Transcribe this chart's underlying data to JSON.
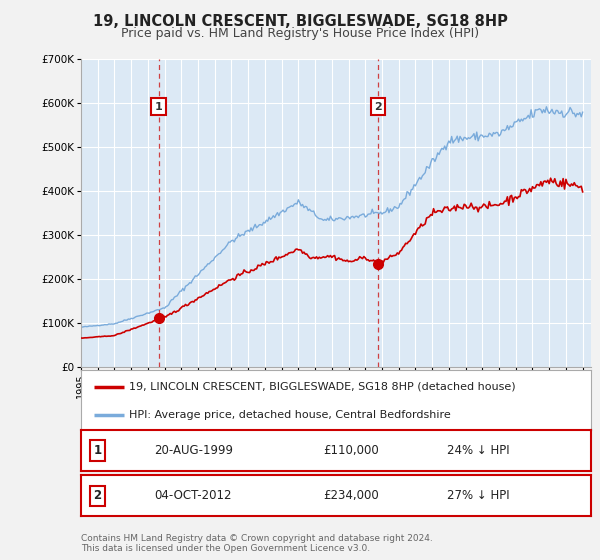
{
  "title": "19, LINCOLN CRESCENT, BIGGLESWADE, SG18 8HP",
  "subtitle": "Price paid vs. HM Land Registry's House Price Index (HPI)",
  "ylim": [
    0,
    700000
  ],
  "yticks": [
    0,
    100000,
    200000,
    300000,
    400000,
    500000,
    600000,
    700000
  ],
  "ytick_labels": [
    "£0",
    "£100K",
    "£200K",
    "£300K",
    "£400K",
    "£500K",
    "£600K",
    "£700K"
  ],
  "xlim_start": 1995.0,
  "xlim_end": 2025.5,
  "bg_color": "#f2f2f2",
  "plot_bg_color": "#dce9f5",
  "grid_color": "#ffffff",
  "red_line_color": "#cc0000",
  "blue_line_color": "#7aabdb",
  "marker1_date": 1999.64,
  "marker1_price": 110000,
  "marker1_label": "1",
  "marker2_date": 2012.76,
  "marker2_price": 234000,
  "marker2_label": "2",
  "vline_color": "#cc2222",
  "legend_red_label": "19, LINCOLN CRESCENT, BIGGLESWADE, SG18 8HP (detached house)",
  "legend_blue_label": "HPI: Average price, detached house, Central Bedfordshire",
  "table_row1": [
    "1",
    "20-AUG-1999",
    "£110,000",
    "24% ↓ HPI"
  ],
  "table_row2": [
    "2",
    "04-OCT-2012",
    "£234,000",
    "27% ↓ HPI"
  ],
  "footer1": "Contains HM Land Registry data © Crown copyright and database right 2024.",
  "footer2": "This data is licensed under the Open Government Licence v3.0.",
  "title_fontsize": 10.5,
  "subtitle_fontsize": 9,
  "tick_fontsize": 7.5,
  "legend_fontsize": 8,
  "table_fontsize": 8.5,
  "footer_fontsize": 6.5
}
